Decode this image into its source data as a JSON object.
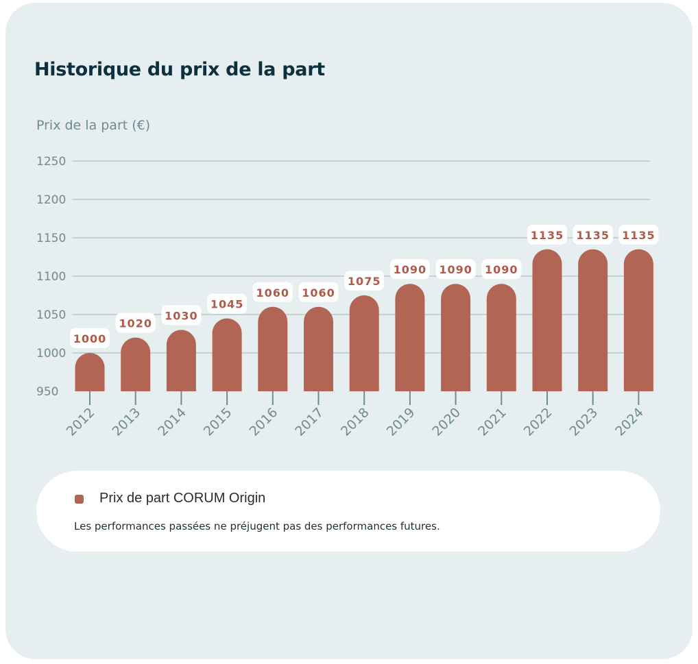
{
  "title": "Historique du prix de la part",
  "chart_data": {
    "type": "bar",
    "ylabel": "Prix de la part (€)",
    "categories": [
      "2012",
      "2013",
      "2014",
      "2015",
      "2016",
      "2017",
      "2018",
      "2019",
      "2020",
      "2021",
      "2022",
      "2023",
      "2024"
    ],
    "series": [
      {
        "name": "Prix de part CORUM Origin",
        "values": [
          1000,
          1020,
          1030,
          1045,
          1060,
          1060,
          1075,
          1090,
          1090,
          1090,
          1135,
          1135,
          1135
        ]
      }
    ],
    "display_labels": [
      "1000",
      "1020",
      "1030",
      "1045",
      "1060",
      "1060",
      "1075",
      "1090",
      "1090",
      "1090",
      "1135",
      "1135",
      "1135"
    ],
    "ylim": [
      950,
      1250
    ],
    "yticks": [
      "950",
      "1000",
      "1050",
      "1100",
      "1150",
      "1200",
      "1250"
    ],
    "grid": true,
    "legend_placement": "bottom",
    "colors": {
      "bar": "#b36555",
      "grid": "#b9c8cc",
      "axis_text": "#6e8a93",
      "label_text": "#b05a4a"
    }
  },
  "legend": {
    "label": "Prix de part CORUM Origin",
    "disclaimer": "Les performances passées ne préjugent pas des performances futures."
  }
}
